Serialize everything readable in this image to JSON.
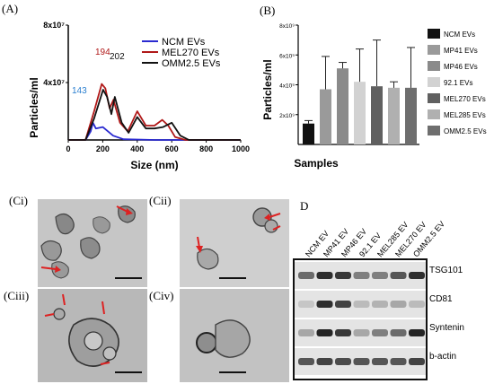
{
  "panel_labels": {
    "a": "(A)",
    "b": "(B)",
    "ci": "(Ci)",
    "cii": "(Cii)",
    "ciii": "(Ciii)",
    "civ": "(Civ)",
    "d": "D"
  },
  "chart_data": [
    {
      "type": "line",
      "xlabel": "Size (nm)",
      "ylabel": "Particles/ml",
      "xlim": [
        0,
        1000
      ],
      "ylim": [
        0,
        80000000
      ],
      "x_ticks": [
        "0",
        "200",
        "400",
        "600",
        "800",
        "1000"
      ],
      "y_ticks": [
        "4x10⁷",
        "8x10⁷"
      ],
      "legend_position": "top-right",
      "series": [
        {
          "name": "NCM EVs",
          "color": "#2a2ad0",
          "x": [
            0,
            100,
            130,
            143,
            160,
            200,
            260,
            320,
            400,
            500,
            600,
            700,
            1000
          ],
          "y": [
            0,
            0,
            6000000,
            12000000,
            8000000,
            9000000,
            3000000,
            500000,
            300000,
            0,
            0,
            0,
            0
          ]
        },
        {
          "name": "MEL270 EVs",
          "color": "#b01818",
          "x": [
            0,
            100,
            150,
            194,
            215,
            240,
            262,
            300,
            345,
            400,
            450,
            500,
            545,
            580,
            620,
            680,
            1000
          ],
          "y": [
            0,
            0,
            20000000,
            39000000,
            36000000,
            22000000,
            28000000,
            12000000,
            6000000,
            20000000,
            10000000,
            10000000,
            14000000,
            10000000,
            2000000,
            0,
            0
          ]
        },
        {
          "name": "OMM2.5 EVs",
          "color": "#111111",
          "x": [
            0,
            100,
            150,
            202,
            225,
            250,
            270,
            310,
            350,
            400,
            450,
            500,
            550,
            600,
            650,
            700,
            1000
          ],
          "y": [
            0,
            0,
            15000000,
            35000000,
            30000000,
            18000000,
            30000000,
            12000000,
            5000000,
            16000000,
            8000000,
            8000000,
            9000000,
            12000000,
            3000000,
            0,
            0
          ]
        }
      ],
      "annotations": [
        {
          "text": "143",
          "color": "#2a7fd0"
        },
        {
          "text": "194",
          "color": "#b01818"
        },
        {
          "text": "202",
          "color": "#111111"
        }
      ]
    },
    {
      "type": "bar",
      "xlabel": "Samples",
      "ylabel": "Particles/ml",
      "ylim": [
        0,
        8000000000
      ],
      "y_ticks": [
        "2x10⁹",
        "4x10⁹",
        "6x10⁹",
        "8x10⁹"
      ],
      "legend_position": "right",
      "categories": [
        "NCM EVs",
        "MP41 EVs",
        "MP46 EVs",
        "92.1 EVs",
        "MEL270 EVs",
        "MEL285 EVs",
        "OMM2.5 EVs"
      ],
      "values": [
        1400000000,
        3700000000,
        5100000000,
        4200000000,
        3900000000,
        3800000000,
        3800000000
      ],
      "errors": [
        200000000,
        2200000000,
        400000000,
        2200000000,
        3100000000,
        400000000,
        2700000000
      ],
      "colors": [
        "#111111",
        "#9a9a9a",
        "#8a8a8a",
        "#d2d2d2",
        "#606060",
        "#b0b0b0",
        "#6e6e6e"
      ]
    }
  ],
  "blot": {
    "lanes": [
      "NCM EV",
      "MP41 EV",
      "MP46 EV",
      "92.1 EV",
      "MEL285 EV",
      "MEL270 EV",
      "OMM2.5 EV"
    ],
    "bands": [
      "TSG101",
      "CD81",
      "Syntenin",
      "b-actin"
    ]
  }
}
